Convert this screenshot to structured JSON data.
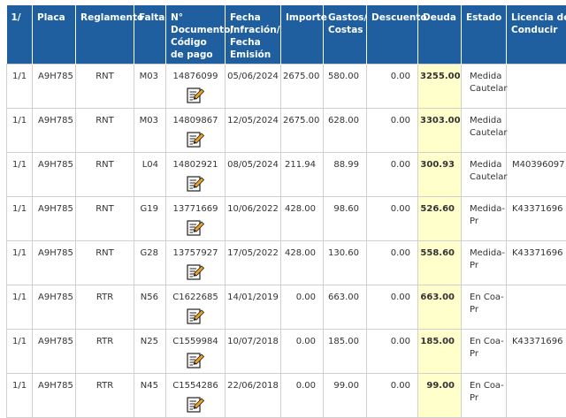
{
  "headers": [
    "1/",
    "Placa",
    "Reglamento",
    "Falta",
    "N° Documento/ Código de pago",
    "Fecha Infración/ Fecha Emisión",
    "Importe",
    "Gastos/ Costas",
    "Descuento",
    "Deuda",
    "Estado",
    "Licencia de Conducir"
  ],
  "rows": [
    {
      "idx": "1/1",
      "placa": "A9H785",
      "reglamento": "RNT",
      "falta": "M03",
      "documento": "14876099",
      "fecha": "05/06/2024",
      "importe": "2675.00",
      "gastos": "580.00",
      "descuento": "0.00",
      "deuda": "3255.00",
      "estado": "Medida Cautelar",
      "licencia": ""
    },
    {
      "idx": "1/1",
      "placa": "A9H785",
      "reglamento": "RNT",
      "falta": "M03",
      "documento": "14809867",
      "fecha": "12/05/2024",
      "importe": "2675.00",
      "gastos": "628.00",
      "descuento": "0.00",
      "deuda": "3303.00",
      "estado": "Medida Cautelar",
      "licencia": ""
    },
    {
      "idx": "1/1",
      "placa": "A9H785",
      "reglamento": "RNT",
      "falta": "L04",
      "documento": "14802921",
      "fecha": "08/05/2024",
      "importe": "211.94",
      "gastos": "88.99",
      "descuento": "0.00",
      "deuda": "300.93",
      "estado": "Medida Cautelar",
      "licencia": "M40396097"
    },
    {
      "idx": "1/1",
      "placa": "A9H785",
      "reglamento": "RNT",
      "falta": "G19",
      "documento": "13771669",
      "fecha": "10/06/2022",
      "importe": "428.00",
      "gastos": "98.60",
      "descuento": "0.00",
      "deuda": "526.60",
      "estado": "Medida-Pr",
      "licencia": "K43371696"
    },
    {
      "idx": "1/1",
      "placa": "A9H785",
      "reglamento": "RNT",
      "falta": "G28",
      "documento": "13757927",
      "fecha": "17/05/2022",
      "importe": "428.00",
      "gastos": "130.60",
      "descuento": "0.00",
      "deuda": "558.60",
      "estado": "Medida-Pr",
      "licencia": "K43371696"
    },
    {
      "idx": "1/1",
      "placa": "A9H785",
      "reglamento": "RTR",
      "falta": "N56",
      "documento": "C1622685",
      "fecha": "14/01/2019",
      "importe": "0.00",
      "gastos": "663.00",
      "descuento": "0.00",
      "deuda": "663.00",
      "estado": "En Coa-Pr",
      "licencia": ""
    },
    {
      "idx": "1/1",
      "placa": "A9H785",
      "reglamento": "RTR",
      "falta": "N25",
      "documento": "C1559984",
      "fecha": "10/07/2018",
      "importe": "0.00",
      "gastos": "185.00",
      "descuento": "0.00",
      "deuda": "185.00",
      "estado": "En Coa-Pr",
      "licencia": "K43371696"
    },
    {
      "idx": "1/1",
      "placa": "A9H785",
      "reglamento": "RTR",
      "falta": "N45",
      "documento": "C1554286",
      "fecha": "22/06/2018",
      "importe": "0.00",
      "gastos": "99.00",
      "descuento": "0.00",
      "deuda": "99.00",
      "estado": "En Coa-Pr",
      "licencia": ""
    }
  ],
  "icons": {
    "edit": "edit-document-icon"
  },
  "colors": {
    "header_bg": "#1f5fa0",
    "deuda_bg": "#ffffcc"
  }
}
